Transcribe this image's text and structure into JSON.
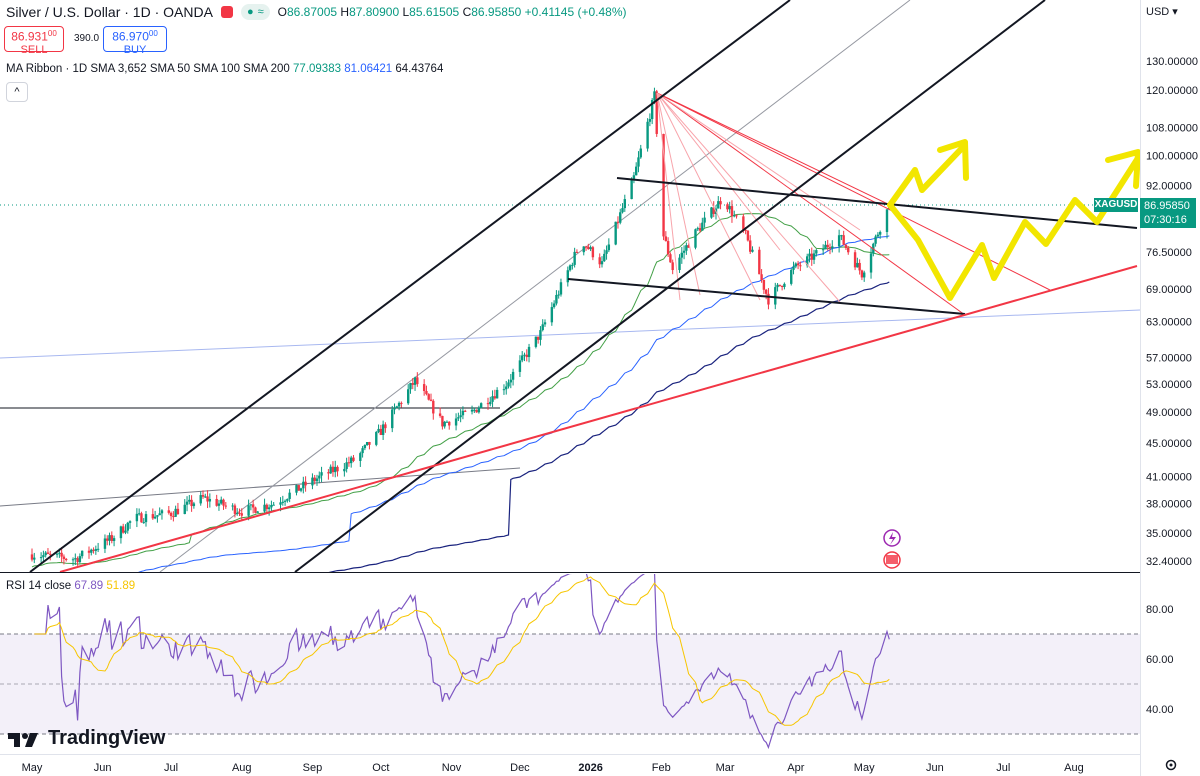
{
  "header": {
    "title": "Silver / U.S. Dollar · 1D · OANDA",
    "ohlc": {
      "o_label": "O",
      "o": "86.87005",
      "h_label": "H",
      "h": "87.80900",
      "l_label": "L",
      "l": "85.61505",
      "c_label": "C",
      "c": "86.95850",
      "change": "+0.41145 (+0.48%)"
    },
    "sell_price": "86.931",
    "sell_sup": "00",
    "sell_label": "SELL",
    "buy_price": "86.970",
    "buy_sup": "00",
    "buy_label": "BUY",
    "spread": "390.0",
    "currency": "USD"
  },
  "indicator": {
    "label": "MA Ribbon · 1D SMA 3,652 SMA 50 SMA 100 SMA 200",
    "v1": "77.09383",
    "v2": "81.06421",
    "v3": "64.43764"
  },
  "rsi": {
    "label": "RSI 14 close",
    "value": "67.89",
    "ma_value": "51.89"
  },
  "current": {
    "symbol": "XAGUSD",
    "price": "86.95850",
    "countdown": "07:30:16"
  },
  "brand": "TradingView",
  "colors": {
    "up": "#089981",
    "down": "#f23645",
    "rsi": "#7e57c2",
    "rsi_ma": "#f7c600",
    "projection": "#f2e600"
  },
  "chart_data": [
    {
      "type": "candlestick",
      "title": "Silver / U.S. Dollar · 1D · OANDA",
      "y_scale": "log",
      "y_ticks": [
        "130.00000",
        "120.00000",
        "108.00000",
        "100.00000",
        "92.00000",
        "76.50000",
        "69.00000",
        "63.00000",
        "57.00000",
        "53.00000",
        "49.00000",
        "45.00000",
        "41.00000",
        "38.00000",
        "35.00000",
        "32.40000"
      ],
      "x_ticks": [
        "May",
        "Jun",
        "Jul",
        "Aug",
        "Sep",
        "Oct",
        "Nov",
        "Dec",
        "2026",
        "Feb",
        "Mar",
        "Apr",
        "May",
        "Jun",
        "Jul",
        "Aug"
      ],
      "ylim": [
        32.0,
        140.0
      ],
      "last_close": 86.9585,
      "ma_ribbon": [
        {
          "name": "SMA 50",
          "last": 77.09383
        },
        {
          "name": "SMA 100",
          "last": 81.06421
        },
        {
          "name": "SMA 200",
          "last": 64.43764
        }
      ],
      "price_path": [
        [
          "2025-05-01",
          33.0
        ],
        [
          "2025-05-20",
          32.6
        ],
        [
          "2025-06-05",
          34.5
        ],
        [
          "2025-06-15",
          36.5
        ],
        [
          "2025-07-01",
          37.0
        ],
        [
          "2025-07-15",
          38.6
        ],
        [
          "2025-08-01",
          37.2
        ],
        [
          "2025-08-15",
          38.0
        ],
        [
          "2025-09-01",
          40.5
        ],
        [
          "2025-09-20",
          43.0
        ],
        [
          "2025-10-01",
          46.5
        ],
        [
          "2025-10-16",
          53.5
        ],
        [
          "2025-10-28",
          47.5
        ],
        [
          "2025-11-10",
          49.0
        ],
        [
          "2025-11-25",
          53.0
        ],
        [
          "2025-12-10",
          61.0
        ],
        [
          "2025-12-28",
          79.0
        ],
        [
          "2026-01-06",
          74.0
        ],
        [
          "2026-01-20",
          94.0
        ],
        [
          "2026-01-29",
          118.0
        ],
        [
          "2026-02-02",
          80.0
        ],
        [
          "2026-02-06",
          73.0
        ],
        [
          "2026-02-15",
          80.0
        ],
        [
          "2026-02-28",
          89.0
        ],
        [
          "2026-03-10",
          80.0
        ],
        [
          "2026-03-20",
          67.0
        ],
        [
          "2026-03-31",
          73.0
        ],
        [
          "2026-04-10",
          76.0
        ],
        [
          "2026-04-20",
          80.0
        ],
        [
          "2026-04-30",
          72.0
        ],
        [
          "2026-05-08",
          82.0
        ],
        [
          "2026-05-12",
          86.96
        ]
      ]
    },
    {
      "type": "line",
      "title": "RSI 14 close",
      "y_ticks": [
        "80.00",
        "60.00",
        "40.00"
      ],
      "ylim": [
        28,
        92
      ],
      "bands": [
        70,
        50,
        30
      ],
      "series": [
        {
          "name": "RSI",
          "last": 67.89
        },
        {
          "name": "RSI MA",
          "last": 51.89
        }
      ]
    }
  ]
}
